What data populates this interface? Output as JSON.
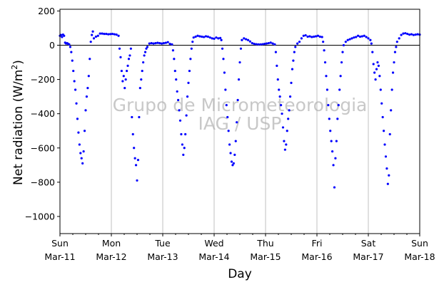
{
  "chart_data": {
    "type": "scatter",
    "title": "",
    "xlabel": "Day",
    "ylabel": "Net radiation (W/m²)",
    "ylabel_parts": {
      "main": "Net radiation (W/m",
      "sup": "2",
      "close": ")"
    },
    "xlim": [
      0,
      7
    ],
    "ylim": [
      -1100,
      210
    ],
    "yticks": [
      200,
      0,
      -200,
      -400,
      -600,
      -800,
      -1000
    ],
    "ytick_labels": [
      "200",
      "0",
      "−200",
      "−400",
      "−600",
      "−800",
      "−1000"
    ],
    "xticks": [
      {
        "day": 0,
        "line1": "Sun",
        "line2": "Mar-11"
      },
      {
        "day": 1,
        "line1": "Mon",
        "line2": "Mar-12"
      },
      {
        "day": 2,
        "line1": "Tue",
        "line2": "Mar-13"
      },
      {
        "day": 3,
        "line1": "Wed",
        "line2": "Mar-14"
      },
      {
        "day": 4,
        "line1": "Thu",
        "line2": "Mar-15"
      },
      {
        "day": 5,
        "line1": "Fri",
        "line2": "Mar-16"
      },
      {
        "day": 6,
        "line1": "Sat",
        "line2": "Mar-17"
      },
      {
        "day": 7,
        "line1": "Sun",
        "line2": "Mar-18"
      }
    ],
    "vertical_grid": true,
    "zero_line": true,
    "marker_color": "#0000ff",
    "watermark": {
      "line1": "Grupo de Micrometeorologia",
      "line2": "IAG / USP"
    },
    "series": [
      {
        "x_unit": "days since Sun Mar-11 00:00",
        "points": [
          [
            0.0,
            55
          ],
          [
            0.02,
            60
          ],
          [
            0.04,
            48
          ],
          [
            0.06,
            62
          ],
          [
            0.08,
            55
          ],
          [
            0.1,
            15
          ],
          [
            0.12,
            10
          ],
          [
            0.14,
            12
          ],
          [
            0.16,
            8
          ],
          [
            0.18,
            5
          ],
          [
            0.2,
            -10
          ],
          [
            0.22,
            -40
          ],
          [
            0.24,
            -90
          ],
          [
            0.26,
            -150
          ],
          [
            0.28,
            -210
          ],
          [
            0.3,
            -260
          ],
          [
            0.32,
            -340
          ],
          [
            0.34,
            -430
          ],
          [
            0.36,
            -510
          ],
          [
            0.38,
            -580
          ],
          [
            0.4,
            -630
          ],
          [
            0.42,
            -660
          ],
          [
            0.44,
            -690
          ],
          [
            0.46,
            -620
          ],
          [
            0.48,
            -500
          ],
          [
            0.5,
            -380
          ],
          [
            0.52,
            -300
          ],
          [
            0.54,
            -250
          ],
          [
            0.56,
            -180
          ],
          [
            0.58,
            -80
          ],
          [
            0.6,
            20
          ],
          [
            0.62,
            60
          ],
          [
            0.64,
            80
          ],
          [
            0.66,
            40
          ],
          [
            0.7,
            50
          ],
          [
            0.74,
            55
          ],
          [
            0.78,
            68
          ],
          [
            0.82,
            68
          ],
          [
            0.86,
            66
          ],
          [
            0.9,
            66
          ],
          [
            0.94,
            64
          ],
          [
            0.98,
            65
          ],
          [
            1.02,
            66
          ],
          [
            1.06,
            64
          ],
          [
            1.1,
            62
          ],
          [
            1.14,
            55
          ],
          [
            1.16,
            -20
          ],
          [
            1.18,
            -70
          ],
          [
            1.2,
            -150
          ],
          [
            1.22,
            -210
          ],
          [
            1.24,
            -180
          ],
          [
            1.26,
            -250
          ],
          [
            1.28,
            -200
          ],
          [
            1.3,
            -150
          ],
          [
            1.32,
            -120
          ],
          [
            1.34,
            -80
          ],
          [
            1.36,
            -60
          ],
          [
            1.38,
            -20
          ],
          [
            1.4,
            -420
          ],
          [
            1.42,
            -520
          ],
          [
            1.44,
            -600
          ],
          [
            1.46,
            -660
          ],
          [
            1.48,
            -700
          ],
          [
            1.5,
            -790
          ],
          [
            1.52,
            -670
          ],
          [
            1.54,
            -420
          ],
          [
            1.56,
            -250
          ],
          [
            1.58,
            -200
          ],
          [
            1.6,
            -150
          ],
          [
            1.62,
            -100
          ],
          [
            1.64,
            -60
          ],
          [
            1.66,
            -40
          ],
          [
            1.68,
            -20
          ],
          [
            1.7,
            -10
          ],
          [
            1.74,
            10
          ],
          [
            1.78,
            12
          ],
          [
            1.82,
            10
          ],
          [
            1.86,
            12
          ],
          [
            1.9,
            14
          ],
          [
            1.94,
            12
          ],
          [
            1.98,
            10
          ],
          [
            2.02,
            12
          ],
          [
            2.06,
            14
          ],
          [
            2.1,
            18
          ],
          [
            2.14,
            8
          ],
          [
            2.18,
            5
          ],
          [
            2.2,
            -30
          ],
          [
            2.22,
            -80
          ],
          [
            2.24,
            -150
          ],
          [
            2.26,
            -200
          ],
          [
            2.28,
            -270
          ],
          [
            2.3,
            -320
          ],
          [
            2.32,
            -380
          ],
          [
            2.34,
            -440
          ],
          [
            2.36,
            -520
          ],
          [
            2.38,
            -580
          ],
          [
            2.4,
            -640
          ],
          [
            2.42,
            -600
          ],
          [
            2.44,
            -520
          ],
          [
            2.46,
            -410
          ],
          [
            2.48,
            -300
          ],
          [
            2.5,
            -220
          ],
          [
            2.52,
            -150
          ],
          [
            2.54,
            -80
          ],
          [
            2.56,
            -20
          ],
          [
            2.58,
            20
          ],
          [
            2.6,
            45
          ],
          [
            2.64,
            50
          ],
          [
            2.68,
            55
          ],
          [
            2.72,
            52
          ],
          [
            2.76,
            50
          ],
          [
            2.8,
            48
          ],
          [
            2.84,
            52
          ],
          [
            2.88,
            50
          ],
          [
            2.92,
            45
          ],
          [
            2.96,
            40
          ],
          [
            3.0,
            38
          ],
          [
            3.04,
            45
          ],
          [
            3.08,
            40
          ],
          [
            3.12,
            42
          ],
          [
            3.14,
            30
          ],
          [
            3.16,
            -20
          ],
          [
            3.18,
            -80
          ],
          [
            3.2,
            -160
          ],
          [
            3.22,
            -260
          ],
          [
            3.24,
            -350
          ],
          [
            3.26,
            -420
          ],
          [
            3.28,
            -500
          ],
          [
            3.3,
            -580
          ],
          [
            3.32,
            -630
          ],
          [
            3.34,
            -680
          ],
          [
            3.36,
            -700
          ],
          [
            3.38,
            -690
          ],
          [
            3.4,
            -640
          ],
          [
            3.42,
            -560
          ],
          [
            3.44,
            -450
          ],
          [
            3.46,
            -320
          ],
          [
            3.48,
            -200
          ],
          [
            3.5,
            -100
          ],
          [
            3.52,
            -20
          ],
          [
            3.54,
            30
          ],
          [
            3.58,
            40
          ],
          [
            3.62,
            35
          ],
          [
            3.66,
            30
          ],
          [
            3.7,
            22
          ],
          [
            3.74,
            12
          ],
          [
            3.78,
            8
          ],
          [
            3.82,
            6
          ],
          [
            3.86,
            5
          ],
          [
            3.9,
            5
          ],
          [
            3.94,
            6
          ],
          [
            3.98,
            8
          ],
          [
            4.02,
            10
          ],
          [
            4.06,
            12
          ],
          [
            4.1,
            15
          ],
          [
            4.14,
            10
          ],
          [
            4.18,
            5
          ],
          [
            4.2,
            -40
          ],
          [
            4.22,
            -120
          ],
          [
            4.24,
            -200
          ],
          [
            4.26,
            -260
          ],
          [
            4.28,
            -300
          ],
          [
            4.3,
            -350
          ],
          [
            4.32,
            -400
          ],
          [
            4.34,
            -480
          ],
          [
            4.36,
            -560
          ],
          [
            4.38,
            -610
          ],
          [
            4.4,
            -580
          ],
          [
            4.42,
            -500
          ],
          [
            4.44,
            -430
          ],
          [
            4.46,
            -380
          ],
          [
            4.48,
            -300
          ],
          [
            4.5,
            -220
          ],
          [
            4.52,
            -140
          ],
          [
            4.54,
            -90
          ],
          [
            4.56,
            -40
          ],
          [
            4.58,
            -10
          ],
          [
            4.62,
            10
          ],
          [
            4.66,
            20
          ],
          [
            4.7,
            40
          ],
          [
            4.74,
            55
          ],
          [
            4.78,
            58
          ],
          [
            4.82,
            50
          ],
          [
            4.86,
            52
          ],
          [
            4.9,
            48
          ],
          [
            4.94,
            50
          ],
          [
            4.98,
            52
          ],
          [
            5.02,
            55
          ],
          [
            5.06,
            50
          ],
          [
            5.1,
            48
          ],
          [
            5.12,
            20
          ],
          [
            5.14,
            -30
          ],
          [
            5.16,
            -100
          ],
          [
            5.18,
            -180
          ],
          [
            5.2,
            -260
          ],
          [
            5.22,
            -350
          ],
          [
            5.24,
            -430
          ],
          [
            5.26,
            -500
          ],
          [
            5.28,
            -560
          ],
          [
            5.3,
            -620
          ],
          [
            5.32,
            -700
          ],
          [
            5.34,
            -830
          ],
          [
            5.36,
            -660
          ],
          [
            5.38,
            -560
          ],
          [
            5.4,
            -430
          ],
          [
            5.42,
            -350
          ],
          [
            5.44,
            -260
          ],
          [
            5.46,
            -180
          ],
          [
            5.48,
            -100
          ],
          [
            5.5,
            -40
          ],
          [
            5.52,
            0
          ],
          [
            5.56,
            20
          ],
          [
            5.6,
            30
          ],
          [
            5.64,
            35
          ],
          [
            5.68,
            40
          ],
          [
            5.72,
            45
          ],
          [
            5.76,
            48
          ],
          [
            5.8,
            55
          ],
          [
            5.84,
            50
          ],
          [
            5.88,
            52
          ],
          [
            5.92,
            55
          ],
          [
            5.96,
            48
          ],
          [
            6.0,
            40
          ],
          [
            6.04,
            30
          ],
          [
            6.06,
            10
          ],
          [
            6.08,
            -40
          ],
          [
            6.1,
            -110
          ],
          [
            6.12,
            -160
          ],
          [
            6.14,
            -200
          ],
          [
            6.16,
            -140
          ],
          [
            6.18,
            -100
          ],
          [
            6.2,
            -120
          ],
          [
            6.22,
            -180
          ],
          [
            6.24,
            -260
          ],
          [
            6.26,
            -340
          ],
          [
            6.28,
            -420
          ],
          [
            6.3,
            -500
          ],
          [
            6.32,
            -580
          ],
          [
            6.34,
            -650
          ],
          [
            6.36,
            -720
          ],
          [
            6.38,
            -810
          ],
          [
            6.4,
            -760
          ],
          [
            6.42,
            -520
          ],
          [
            6.44,
            -380
          ],
          [
            6.46,
            -260
          ],
          [
            6.48,
            -160
          ],
          [
            6.5,
            -100
          ],
          [
            6.52,
            -40
          ],
          [
            6.54,
            -10
          ],
          [
            6.56,
            20
          ],
          [
            6.6,
            40
          ],
          [
            6.64,
            60
          ],
          [
            6.68,
            68
          ],
          [
            6.72,
            70
          ],
          [
            6.76,
            66
          ],
          [
            6.8,
            62
          ],
          [
            6.84,
            64
          ],
          [
            6.88,
            60
          ],
          [
            6.92,
            62
          ],
          [
            6.96,
            64
          ],
          [
            7.0,
            62
          ]
        ]
      }
    ]
  }
}
